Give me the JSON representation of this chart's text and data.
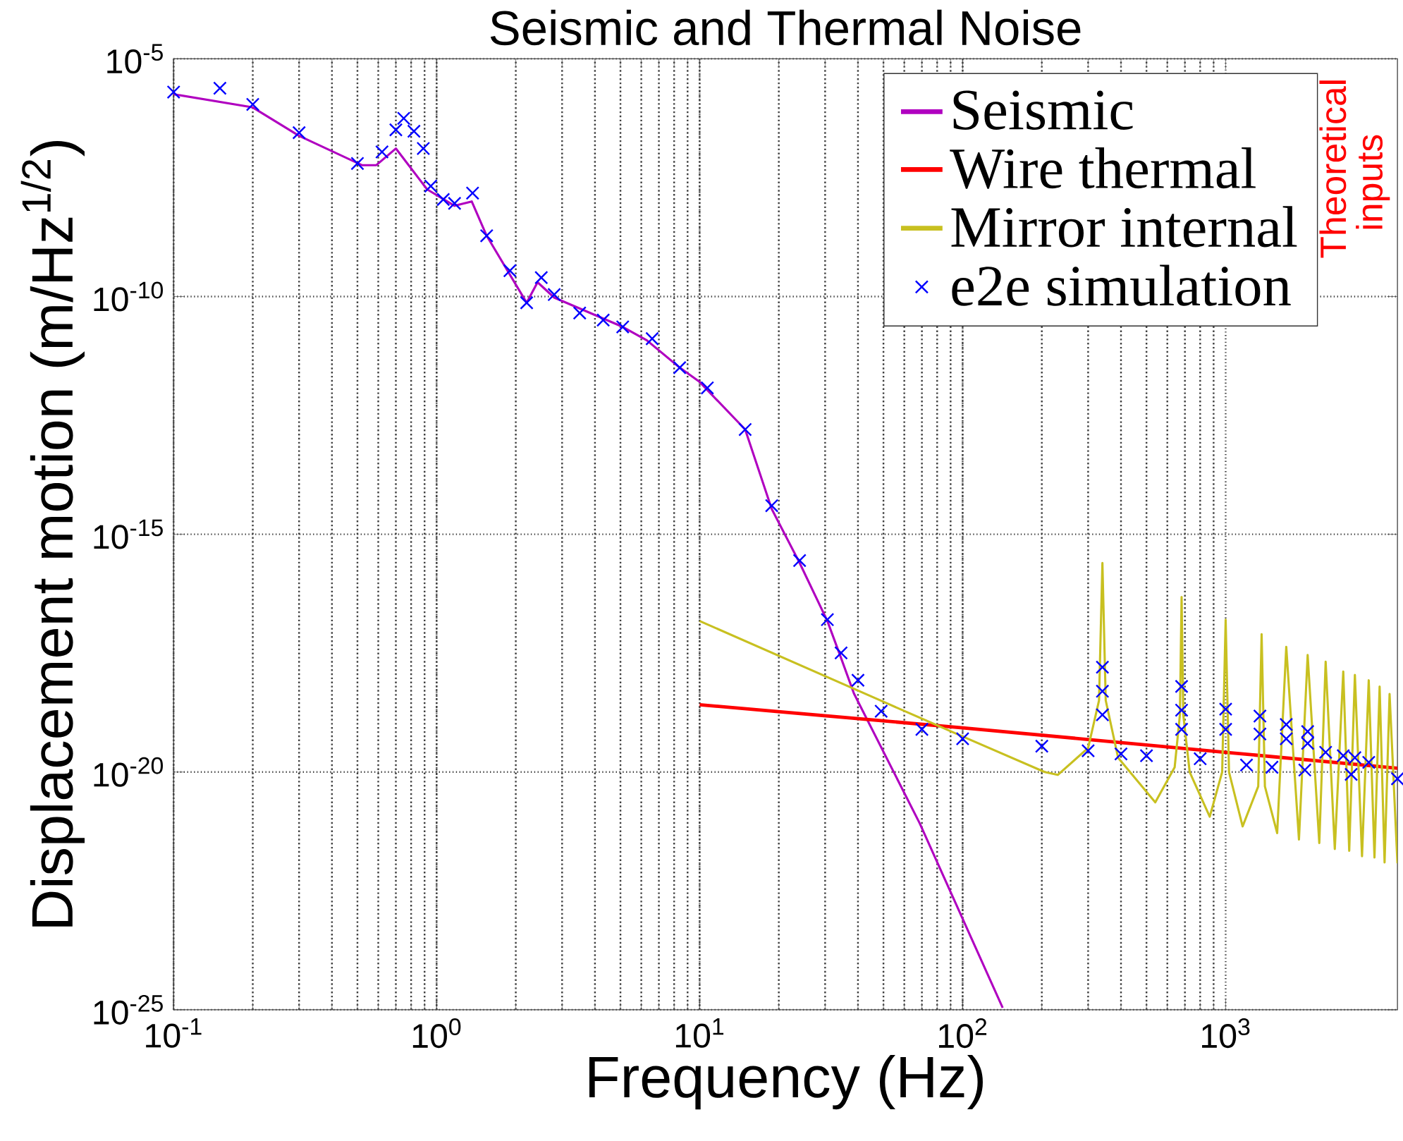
{
  "chart_data": {
    "type": "line",
    "title": "Seismic and Thermal Noise",
    "xlabel": "Frequency (Hz)",
    "ylabel": "Displacement motion (m/Hz$^{1/2}$)",
    "log": "xy",
    "grid": true,
    "legend": "top right",
    "xlim": [
      0.1,
      4500
    ],
    "ylim": [
      1e-25,
      1e-05
    ],
    "xticks": [
      {
        "value": 0.1,
        "label": "10$^{-1}$"
      },
      {
        "value": 1,
        "label": "10$^{0}$"
      },
      {
        "value": 10,
        "label": "10$^{1}$"
      },
      {
        "value": 100,
        "label": "10$^{2}$"
      },
      {
        "value": 1000,
        "label": "10$^{3}$"
      }
    ],
    "yticks": [
      {
        "value": 1e-25,
        "label": "10$^{-25}$"
      },
      {
        "value": 1e-20,
        "label": "10$^{-20}$"
      },
      {
        "value": 1e-15,
        "label": "10$^{-15}$"
      },
      {
        "value": 1e-10,
        "label": "10$^{-10}$"
      },
      {
        "value": 1e-05,
        "label": "10$^{-5}$"
      }
    ],
    "annotations": [
      "Theoretical inputs"
    ],
    "series": [
      {
        "name": "Seismic",
        "color": "#b000c0",
        "x": [
          0.1,
          0.2,
          0.3,
          0.52,
          0.59,
          0.7,
          0.92,
          1.17,
          1.36,
          1.55,
          2.2,
          2.42,
          2.8,
          5.1,
          6.3,
          8.4,
          10,
          14.9,
          18.8,
          24,
          30.6,
          34.5,
          38.6,
          68.7,
          142
        ],
        "values": [
          1.8e-06,
          9.5e-07,
          2.4e-07,
          5.8e-08,
          5.8e-08,
          1.3e-07,
          1.8e-08,
          8.1e-09,
          1e-08,
          1.9e-09,
          7.4e-11,
          2e-10,
          9.5e-11,
          2.3e-11,
          1.2e-11,
          3.2e-12,
          1.6e-12,
          1.6e-13,
          3.4e-15,
          2.5e-16,
          1.5e-17,
          2.5e-18,
          4.5e-19,
          8.3e-22,
          1.1e-25
        ]
      },
      {
        "name": "Wire thermal",
        "color": "#ff0000",
        "x": [
          10,
          100,
          1000,
          4500
        ],
        "values": [
          2.6e-19,
          8.5e-20,
          2.6e-20,
          1.2e-20
        ]
      },
      {
        "name": "Mirror internal",
        "color": "#c8c020",
        "x": [
          10,
          50,
          100,
          205,
          230,
          300,
          330,
          340,
          350,
          390,
          540,
          640,
          670,
          680,
          690,
          730,
          870,
          970,
          1000,
          1030,
          1160,
          1330,
          1370,
          1410,
          1570,
          1700,
          1900,
          2050,
          2270,
          2400,
          2600,
          2800,
          2950,
          3100,
          3300,
          3500,
          3680,
          3850,
          4020,
          4200,
          4500
        ],
        "values": [
          1.5e-17,
          3e-19,
          5.6e-20,
          1e-20,
          8.7e-21,
          3.2e-20,
          3.2e-19,
          2.5e-16,
          3.2e-19,
          2e-20,
          2.3e-21,
          1.26e-20,
          1.6e-19,
          4.8e-17,
          1.6e-19,
          1e-20,
          1.15e-21,
          1e-20,
          1.6e-17,
          1e-20,
          7.2e-22,
          5e-21,
          7.9e-18,
          5e-21,
          5.2e-22,
          4.3e-18,
          3.8e-22,
          2.9e-18,
          3.2e-22,
          2.1e-18,
          2.4e-22,
          1.3e-18,
          2.2e-22,
          1.1e-18,
          1.7e-22,
          8.5e-19,
          1.6e-22,
          6.3e-19,
          1.26e-22,
          4.4e-19,
          1.2e-22
        ]
      },
      {
        "name": "e2e simulation",
        "type": "scatter",
        "marker": "cross",
        "color": "#0000ff",
        "x": [
          0.1,
          0.15,
          0.2,
          0.3,
          0.5,
          0.62,
          0.7,
          0.75,
          0.82,
          0.89,
          0.95,
          1.06,
          1.17,
          1.37,
          1.55,
          1.9,
          2.2,
          2.5,
          2.8,
          3.5,
          4.3,
          5.1,
          6.6,
          8.4,
          10.7,
          14.9,
          18.8,
          24,
          30.6,
          34.5,
          40,
          49,
          70,
          100,
          200,
          300,
          340,
          340,
          340,
          400,
          500,
          680,
          680,
          680,
          800,
          1000,
          1000,
          1200,
          1350,
          1350,
          1500,
          1700,
          1700,
          2000,
          2050,
          2050,
          2400,
          2800,
          3000,
          3100,
          3500,
          4500
        ],
        "values": [
          2e-06,
          2.4e-06,
          1.1e-06,
          2.8e-07,
          6.3e-08,
          1.1e-07,
          3.2e-07,
          5.6e-07,
          3e-07,
          1.3e-07,
          2.1e-08,
          1.1e-08,
          9.1e-09,
          1.5e-08,
          1.9e-09,
          3.5e-10,
          7.4e-11,
          2.5e-10,
          1.1e-10,
          4.5e-11,
          3.2e-11,
          2.3e-11,
          1.3e-11,
          3.2e-12,
          1.2e-12,
          1.6e-13,
          4e-15,
          2.8e-16,
          1.6e-17,
          3.2e-18,
          8.5e-19,
          1.9e-19,
          7.9e-20,
          5e-20,
          3.5e-20,
          2.8e-20,
          1.6e-18,
          5e-19,
          1.6e-19,
          2.4e-20,
          2.2e-20,
          6.3e-19,
          2e-19,
          7.9e-20,
          1.9e-20,
          2.1e-19,
          7.9e-20,
          1.4e-20,
          1.5e-19,
          6.3e-20,
          1.26e-20,
          1e-19,
          5e-20,
          1.1e-20,
          7.1e-20,
          4e-20,
          2.6e-20,
          2.2e-20,
          8.9e-21,
          2e-20,
          1.6e-20,
          7.2e-21
        ]
      }
    ]
  }
}
